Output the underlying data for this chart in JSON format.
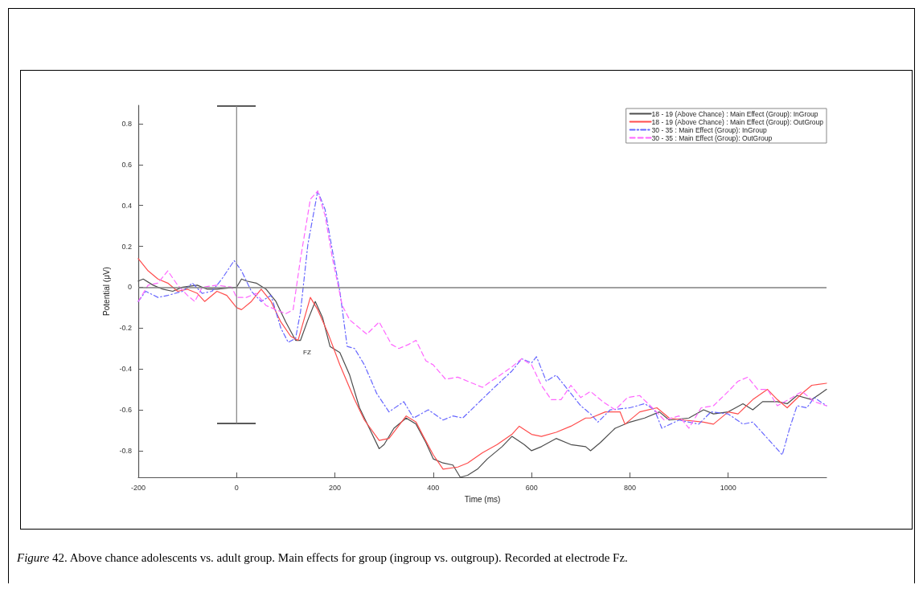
{
  "chart_data": {
    "type": "line",
    "xlabel": "Time (ms)",
    "ylabel": "Potential (μV)",
    "xlim": [
      -200,
      1200
    ],
    "xticks": [
      -200,
      0,
      200,
      400,
      600,
      800,
      1000
    ],
    "ylim": [
      -0.93,
      0.89
    ],
    "yticks": [
      -0.8,
      -0.6,
      -0.4,
      -0.2,
      0,
      0.2,
      0.4,
      0.6,
      0.8
    ],
    "grid": false,
    "legend": "top right",
    "marker": "none",
    "ref_lines": [
      {
        "axis": "y",
        "value": 0,
        "color": "#808080"
      }
    ],
    "annotations": [
      "FZ",
      "Figure 42. Above chance adolescents  vs. adult group. Main effects for group (ingroup vs. outgroup). Recorded at electrode Fz."
    ],
    "series": [
      {
        "name": "18 - 19 (Above Chance) : Main Effect (Group): InGroup",
        "color": "#4d4d4d",
        "line_style": "solid",
        "x": [
          -200,
          -190,
          -170,
          -150,
          -130,
          -110,
          -80,
          -60,
          -40,
          -20,
          0,
          10,
          20,
          40,
          60,
          80,
          100,
          120,
          130,
          145,
          160,
          175,
          190,
          210,
          230,
          250,
          270,
          290,
          300,
          320,
          345,
          365,
          385,
          400,
          420,
          440,
          455,
          470,
          490,
          510,
          540,
          560,
          585,
          600,
          620,
          650,
          680,
          710,
          720,
          740,
          770,
          800,
          830,
          860,
          880,
          920,
          950,
          970,
          1000,
          1030,
          1050,
          1070,
          1100,
          1120,
          1140,
          1170,
          1200
        ],
        "values": [
          0.03,
          0.04,
          0.01,
          -0.01,
          -0.02,
          0,
          0.01,
          -0.01,
          -0.01,
          -0.005,
          0,
          0.04,
          0.03,
          0.02,
          -0.01,
          -0.07,
          -0.17,
          -0.26,
          -0.26,
          -0.16,
          -0.07,
          -0.15,
          -0.29,
          -0.32,
          -0.43,
          -0.59,
          -0.69,
          -0.79,
          -0.77,
          -0.69,
          -0.64,
          -0.67,
          -0.76,
          -0.84,
          -0.86,
          -0.87,
          -0.93,
          -0.92,
          -0.89,
          -0.84,
          -0.78,
          -0.73,
          -0.77,
          -0.8,
          -0.78,
          -0.74,
          -0.77,
          -0.78,
          -0.8,
          -0.76,
          -0.69,
          -0.66,
          -0.64,
          -0.61,
          -0.65,
          -0.64,
          -0.6,
          -0.62,
          -0.61,
          -0.57,
          -0.6,
          -0.56,
          -0.56,
          -0.57,
          -0.53,
          -0.55,
          -0.5
        ]
      },
      {
        "name": "18 - 19 (Above Chance) : Main Effect (Group): OutGroup",
        "color": "#ff4d4d",
        "line_style": "solid",
        "x": [
          -200,
          -180,
          -160,
          -140,
          -120,
          -100,
          -80,
          -65,
          -40,
          -20,
          0,
          10,
          30,
          50,
          70,
          90,
          110,
          125,
          150,
          165,
          185,
          210,
          240,
          260,
          290,
          310,
          345,
          365,
          380,
          400,
          420,
          450,
          470,
          500,
          530,
          560,
          575,
          600,
          620,
          650,
          680,
          710,
          720,
          750,
          780,
          790,
          820,
          855,
          880,
          910,
          950,
          970,
          1000,
          1020,
          1050,
          1080,
          1100,
          1120,
          1150,
          1170,
          1200
        ],
        "values": [
          0.14,
          0.08,
          0.04,
          0.02,
          -0.02,
          -0.01,
          -0.03,
          -0.07,
          -0.02,
          -0.04,
          -0.1,
          -0.11,
          -0.07,
          -0.01,
          -0.07,
          -0.17,
          -0.24,
          -0.26,
          -0.05,
          -0.11,
          -0.22,
          -0.38,
          -0.55,
          -0.65,
          -0.75,
          -0.74,
          -0.63,
          -0.66,
          -0.73,
          -0.82,
          -0.89,
          -0.88,
          -0.86,
          -0.81,
          -0.77,
          -0.72,
          -0.68,
          -0.72,
          -0.73,
          -0.71,
          -0.68,
          -0.64,
          -0.64,
          -0.61,
          -0.61,
          -0.67,
          -0.61,
          -0.59,
          -0.64,
          -0.65,
          -0.66,
          -0.67,
          -0.61,
          -0.62,
          -0.55,
          -0.5,
          -0.55,
          -0.59,
          -0.52,
          -0.48,
          -0.47
        ]
      },
      {
        "name": "30 - 35 : Main Effect (Group): InGroup",
        "color": "#6666ff",
        "line_style": "dashdot",
        "x": [
          -200,
          -185,
          -160,
          -140,
          -110,
          -90,
          -70,
          -50,
          -30,
          -5,
          10,
          30,
          50,
          70,
          90,
          105,
          120,
          130,
          145,
          165,
          180,
          200,
          210,
          225,
          240,
          260,
          285,
          310,
          340,
          360,
          390,
          420,
          440,
          460,
          490,
          520,
          560,
          580,
          600,
          610,
          630,
          650,
          680,
          700,
          720,
          735,
          760,
          800,
          830,
          850,
          865,
          900,
          940,
          965,
          1000,
          1030,
          1050,
          1080,
          1110,
          1125,
          1140,
          1160,
          1175,
          1200
        ],
        "values": [
          -0.07,
          -0.02,
          -0.05,
          -0.04,
          -0.02,
          0.02,
          -0.03,
          -0.02,
          0.04,
          0.13,
          0.08,
          -0.02,
          -0.07,
          -0.04,
          -0.2,
          -0.27,
          -0.25,
          -0.12,
          0.21,
          0.47,
          0.38,
          0.11,
          -0.02,
          -0.29,
          -0.3,
          -0.38,
          -0.52,
          -0.61,
          -0.56,
          -0.64,
          -0.6,
          -0.65,
          -0.63,
          -0.64,
          -0.57,
          -0.5,
          -0.41,
          -0.35,
          -0.37,
          -0.34,
          -0.46,
          -0.43,
          -0.52,
          -0.58,
          -0.62,
          -0.66,
          -0.6,
          -0.59,
          -0.57,
          -0.6,
          -0.69,
          -0.65,
          -0.67,
          -0.61,
          -0.62,
          -0.67,
          -0.66,
          -0.74,
          -0.82,
          -0.69,
          -0.58,
          -0.59,
          -0.54,
          -0.58
        ]
      },
      {
        "name": "30 - 35 : Main Effect (Group): OutGroup",
        "color": "#ff66ff",
        "line_style": "dashed",
        "x": [
          -200,
          -180,
          -160,
          -140,
          -120,
          -100,
          -85,
          -70,
          -40,
          -10,
          0,
          20,
          40,
          60,
          80,
          100,
          115,
          130,
          150,
          165,
          180,
          195,
          215,
          230,
          240,
          265,
          290,
          315,
          330,
          350,
          365,
          385,
          400,
          425,
          450,
          470,
          500,
          530,
          560,
          580,
          600,
          620,
          640,
          660,
          680,
          700,
          720,
          745,
          770,
          795,
          820,
          850,
          870,
          900,
          920,
          945,
          970,
          1000,
          1020,
          1040,
          1060,
          1080,
          1100,
          1130,
          1150,
          1175,
          1200
        ],
        "values": [
          -0.07,
          0.01,
          0.02,
          0.08,
          0.01,
          -0.04,
          -0.07,
          0,
          0.01,
          0,
          -0.05,
          -0.05,
          -0.03,
          -0.09,
          -0.11,
          -0.13,
          -0.11,
          0.14,
          0.43,
          0.47,
          0.35,
          0.14,
          -0.09,
          -0.16,
          -0.18,
          -0.23,
          -0.17,
          -0.28,
          -0.3,
          -0.28,
          -0.26,
          -0.36,
          -0.38,
          -0.45,
          -0.44,
          -0.46,
          -0.49,
          -0.44,
          -0.39,
          -0.35,
          -0.38,
          -0.48,
          -0.55,
          -0.55,
          -0.48,
          -0.54,
          -0.51,
          -0.56,
          -0.6,
          -0.54,
          -0.53,
          -0.6,
          -0.65,
          -0.63,
          -0.69,
          -0.59,
          -0.58,
          -0.51,
          -0.46,
          -0.44,
          -0.5,
          -0.5,
          -0.58,
          -0.54,
          -0.51,
          -0.56,
          -0.58
        ]
      },
      {
        "color": "#808080",
        "marker": "none",
        "line_style": "solid",
        "x": [
          0,
          0
        ],
        "values": [
          -0.665,
          0.885
        ]
      }
    ]
  }
}
